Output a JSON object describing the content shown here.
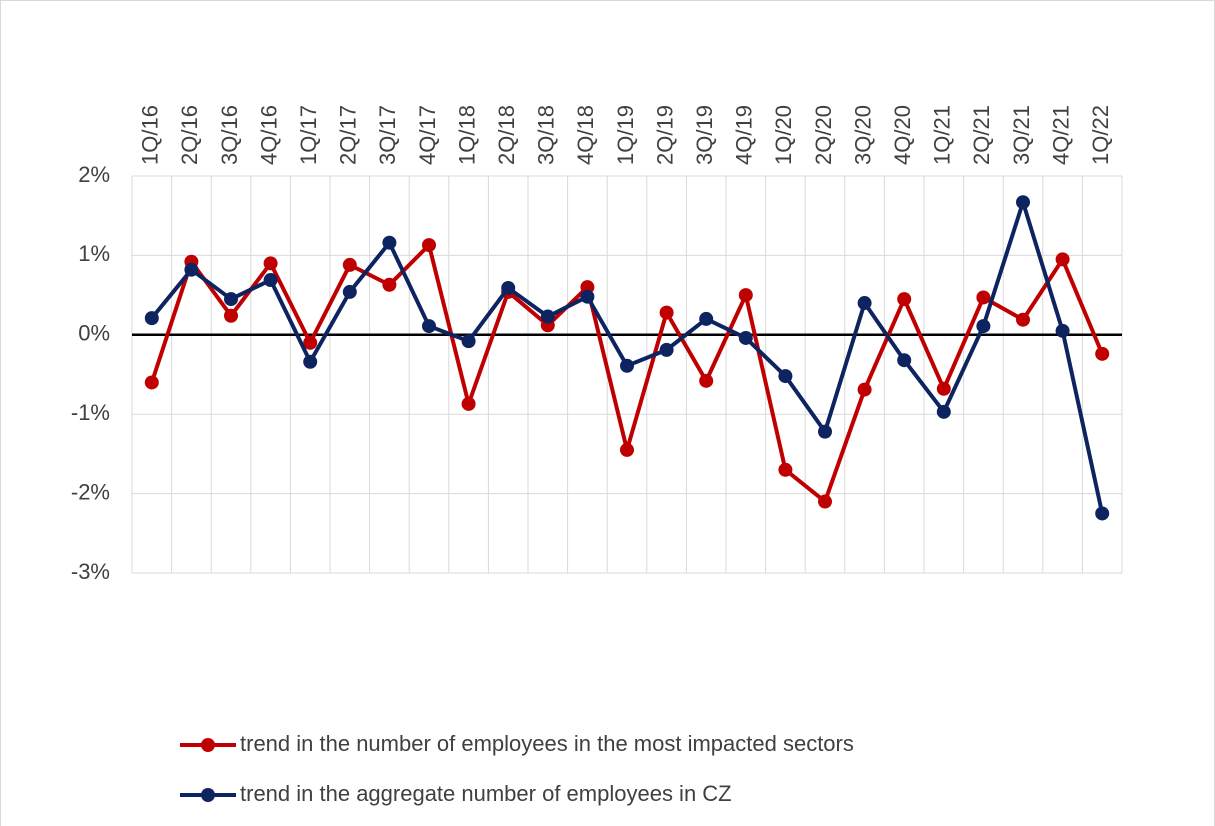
{
  "chart_data": {
    "type": "line",
    "categories": [
      "1Q/16",
      "2Q/16",
      "3Q/16",
      "4Q/16",
      "1Q/17",
      "2Q/17",
      "3Q/17",
      "4Q/17",
      "1Q/18",
      "2Q/18",
      "3Q/18",
      "4Q/18",
      "1Q/19",
      "2Q/19",
      "3Q/19",
      "4Q/19",
      "1Q/20",
      "2Q/20",
      "3Q/20",
      "4Q/20",
      "1Q/21",
      "2Q/21",
      "3Q/21",
      "4Q/21",
      "1Q/22"
    ],
    "series": [
      {
        "name": "trend in the number of employees in the most impacted sectors",
        "color": "#c00000",
        "values": [
          -0.6,
          0.92,
          0.24,
          0.9,
          -0.1,
          0.88,
          0.63,
          1.13,
          -0.87,
          0.54,
          0.12,
          0.6,
          -1.45,
          0.28,
          -0.58,
          0.5,
          -1.7,
          -2.1,
          -0.69,
          0.45,
          -0.68,
          0.47,
          0.19,
          0.95,
          -0.24
        ]
      },
      {
        "name": "trend in the aggregate number of employees in CZ",
        "color": "#0d2461",
        "values": [
          0.21,
          0.82,
          0.45,
          0.69,
          -0.34,
          0.54,
          1.16,
          0.11,
          -0.08,
          0.59,
          0.23,
          0.48,
          -0.39,
          -0.19,
          0.2,
          -0.04,
          -0.52,
          -1.22,
          0.4,
          -0.32,
          -0.97,
          0.11,
          1.67,
          0.05,
          -2.25
        ]
      }
    ],
    "ylim": [
      -3,
      2
    ],
    "yticks": [
      {
        "value": -3,
        "label": "-3%"
      },
      {
        "value": -2,
        "label": "-2%"
      },
      {
        "value": -1,
        "label": "-1%"
      },
      {
        "value": 0,
        "label": "0%"
      },
      {
        "value": 1,
        "label": "1%"
      },
      {
        "value": 2,
        "label": "2%"
      }
    ],
    "grid": true
  }
}
